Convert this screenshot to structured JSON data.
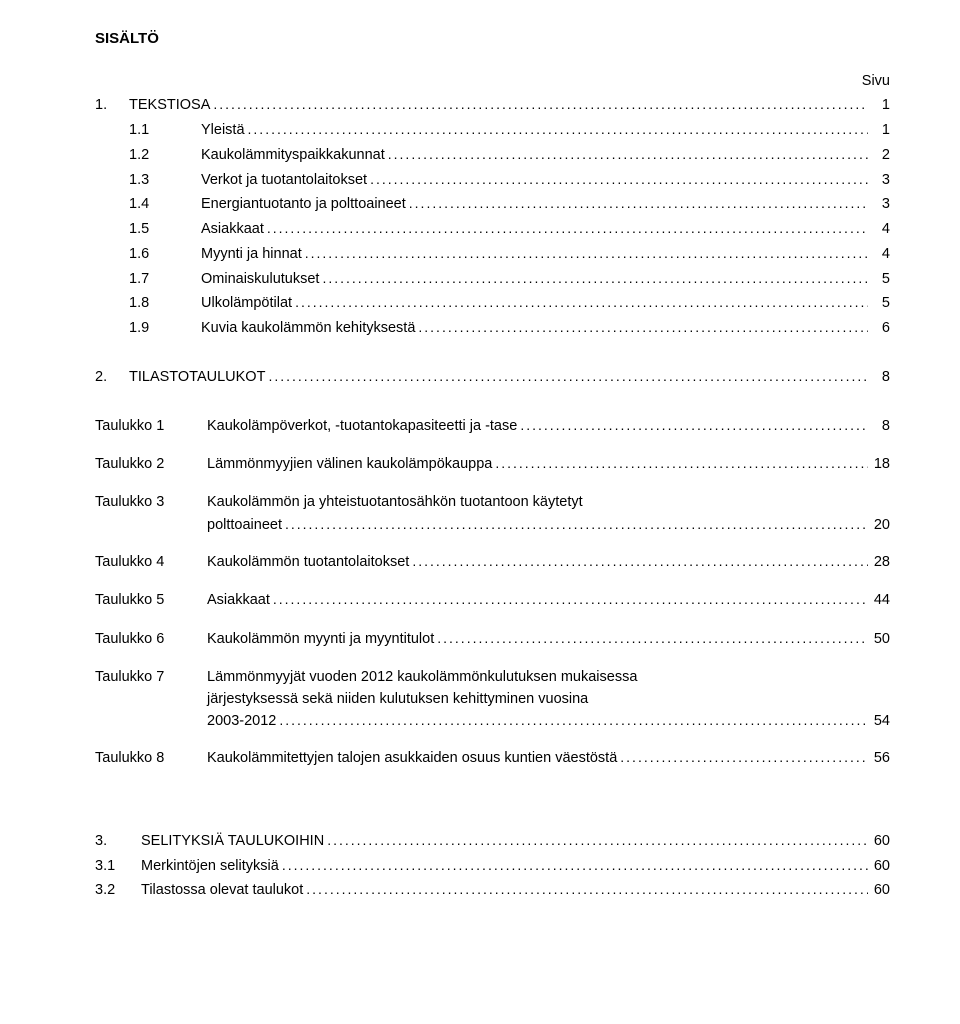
{
  "title": "SISÄLTÖ",
  "page_label": "Sivu",
  "toc": [
    {
      "num": "1.",
      "sub": "",
      "text": "TEKSTIOSA",
      "page": "1"
    },
    {
      "num": "",
      "sub": "1.1",
      "text": "Yleistä",
      "page": "1"
    },
    {
      "num": "",
      "sub": "1.2",
      "text": "Kaukolämmityspaikkakunnat",
      "page": "2"
    },
    {
      "num": "",
      "sub": "1.3",
      "text": "Verkot ja tuotantolaitokset",
      "page": "3"
    },
    {
      "num": "",
      "sub": "1.4",
      "text": "Energiantuotanto ja polttoaineet",
      "page": "3"
    },
    {
      "num": "",
      "sub": "1.5",
      "text": "Asiakkaat",
      "page": "4"
    },
    {
      "num": "",
      "sub": "1.6",
      "text": "Myynti ja hinnat",
      "page": "4"
    },
    {
      "num": "",
      "sub": "1.7",
      "text": "Ominaiskulutukset",
      "page": "5"
    },
    {
      "num": "",
      "sub": "1.8",
      "text": "Ulkolämpötilat",
      "page": "5"
    },
    {
      "num": "",
      "sub": "1.9",
      "text": "Kuvia kaukolämmön kehityksestä",
      "page": "6"
    }
  ],
  "section2": {
    "num": "2.",
    "text": "TILASTOTAULUKOT",
    "page": "8"
  },
  "tables": [
    {
      "label": "Taulukko 1",
      "lines": [
        "Kaukolämpöverkot, -tuotantokapasiteetti ja -tase"
      ],
      "page": "8"
    },
    {
      "label": "Taulukko 2",
      "lines": [
        "Lämmönmyyjien välinen kaukolämpökauppa"
      ],
      "page": "18"
    },
    {
      "label": "Taulukko 3",
      "lines": [
        "Kaukolämmön ja yhteistuotantosähkön tuotantoon käytetyt",
        "polttoaineet"
      ],
      "page": "20"
    },
    {
      "label": "Taulukko 4",
      "lines": [
        "Kaukolämmön tuotantolaitokset"
      ],
      "page": "28"
    },
    {
      "label": "Taulukko 5",
      "lines": [
        "Asiakkaat"
      ],
      "page": "44"
    },
    {
      "label": "Taulukko 6",
      "lines": [
        "Kaukolämmön myynti ja myyntitulot"
      ],
      "page": "50"
    },
    {
      "label": "Taulukko 7",
      "lines": [
        "Lämmönmyyjät vuoden 2012 kaukolämmönkulutuksen mukaisessa",
        "järjestyksessä sekä niiden kulutuksen kehittyminen vuosina",
        "2003-2012"
      ],
      "page": "54"
    },
    {
      "label": "Taulukko 8",
      "lines": [
        "Kaukolämmitettyjen talojen asukkaiden osuus kuntien väestöstä"
      ],
      "page": "56"
    }
  ],
  "footer": [
    {
      "num": "3.",
      "text": "SELITYKSIÄ TAULUKOIHIN",
      "page": "60"
    },
    {
      "num": "3.1",
      "text": "Merkintöjen selityksiä",
      "page": "60"
    },
    {
      "num": "3.2",
      "text": "Tilastossa olevat taulukot",
      "page": "60"
    }
  ],
  "colors": {
    "background": "#ffffff",
    "text": "#000000"
  },
  "typography": {
    "font_family": "Arial",
    "body_size_pt": 11,
    "title_weight": "bold"
  }
}
